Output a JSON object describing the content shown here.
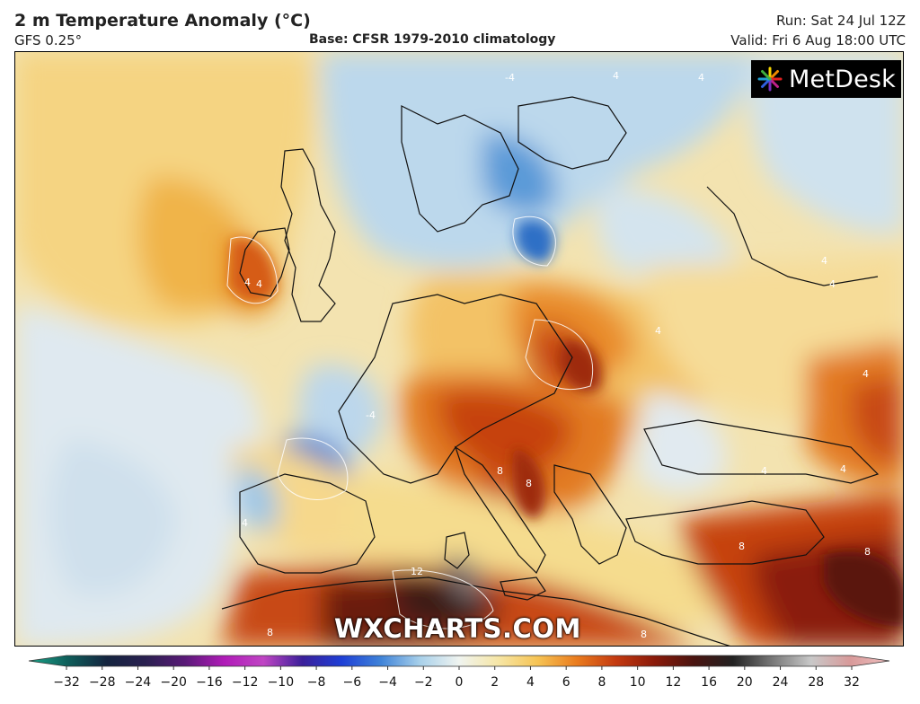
{
  "header": {
    "title": "2 m Temperature Anomaly (°C)",
    "model": "GFS 0.25°",
    "base": "Base: CFSR 1979-2010 climatology",
    "run": "Run: Sat 24 Jul 12Z",
    "valid": "Valid: Fri 6 Aug 18:00 UTC"
  },
  "logo": {
    "text": "MetDesk"
  },
  "watermark": {
    "text": "WXCHARTS.COM"
  },
  "contour_labels": [
    "4",
    "-4",
    "4",
    "4",
    "4",
    "4",
    "4",
    "4",
    "-4",
    "4",
    "4",
    "12",
    "8",
    "8",
    "8",
    "8",
    "8",
    "8",
    "4",
    "4"
  ],
  "legend": {
    "ticks": [
      "−32",
      "−28",
      "−24",
      "−20",
      "−16",
      "−12",
      "−10",
      "−8",
      "−6",
      "−4",
      "−2",
      "0",
      "2",
      "4",
      "6",
      "8",
      "10",
      "12",
      "16",
      "20",
      "24",
      "28",
      "32"
    ],
    "colors": [
      "#1aa58a",
      "#0f5e5a",
      "#14243f",
      "#2a2050",
      "#5a1a78",
      "#b01bb8",
      "#c045c4",
      "#3a1f9a",
      "#1e3fd6",
      "#3f83d8",
      "#a8d0ea",
      "#f0f4f0",
      "#f6e6a6",
      "#f6c454",
      "#ea7c1e",
      "#c43a10",
      "#8a1a0a",
      "#4a1410",
      "#222222",
      "#777777",
      "#c8c8c8",
      "#d89a9a",
      "#f0c0c0"
    ]
  }
}
